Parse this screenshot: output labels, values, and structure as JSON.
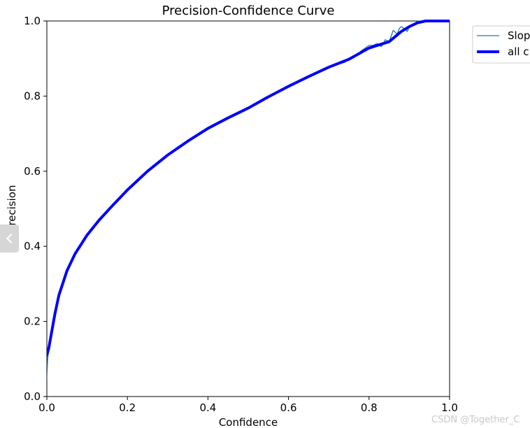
{
  "chart_data": {
    "type": "line",
    "title": "Precision-Confidence Curve",
    "xlabel": "Confidence",
    "ylabel": "Precision",
    "xlim": [
      0.0,
      1.0
    ],
    "ylim": [
      0.0,
      1.0
    ],
    "xticks": [
      "0.0",
      "0.2",
      "0.4",
      "0.6",
      "0.8",
      "1.0"
    ],
    "yticks": [
      "0.0",
      "0.2",
      "0.4",
      "0.6",
      "0.8",
      "1.0"
    ],
    "grid": false,
    "legend_position": "upper-right-outside",
    "series": [
      {
        "name": "Slop",
        "color": "#1f77b4",
        "x": [
          0.0,
          0.002,
          0.005,
          0.01,
          0.02,
          0.03,
          0.05,
          0.07,
          0.1,
          0.13,
          0.16,
          0.2,
          0.25,
          0.3,
          0.35,
          0.4,
          0.45,
          0.5,
          0.55,
          0.6,
          0.65,
          0.7,
          0.73,
          0.74,
          0.745,
          0.75,
          0.76,
          0.77,
          0.78,
          0.8,
          0.81,
          0.82,
          0.83,
          0.835,
          0.84,
          0.85,
          0.855,
          0.86,
          0.87,
          0.875,
          0.88,
          0.89,
          0.895,
          0.9,
          0.91,
          0.92,
          0.94,
          0.96,
          1.0
        ],
        "y": [
          0.05,
          0.1,
          0.13,
          0.16,
          0.22,
          0.27,
          0.34,
          0.38,
          0.43,
          0.47,
          0.505,
          0.55,
          0.6,
          0.643,
          0.68,
          0.714,
          0.742,
          0.768,
          0.798,
          0.826,
          0.852,
          0.877,
          0.887,
          0.89,
          0.895,
          0.9,
          0.905,
          0.91,
          0.92,
          0.935,
          0.935,
          0.94,
          0.932,
          0.938,
          0.95,
          0.945,
          0.96,
          0.975,
          0.965,
          0.98,
          0.985,
          0.978,
          0.972,
          0.985,
          0.99,
          1.0,
          1.0,
          1.0,
          1.0
        ]
      },
      {
        "name": "all c",
        "color": "#0000ff",
        "x": [
          0.0,
          0.005,
          0.01,
          0.02,
          0.03,
          0.05,
          0.07,
          0.1,
          0.13,
          0.16,
          0.2,
          0.25,
          0.3,
          0.35,
          0.4,
          0.45,
          0.5,
          0.55,
          0.6,
          0.65,
          0.7,
          0.75,
          0.8,
          0.85,
          0.88,
          0.9,
          0.92,
          0.94,
          1.0
        ],
        "y": [
          0.11,
          0.13,
          0.16,
          0.22,
          0.27,
          0.335,
          0.38,
          0.43,
          0.47,
          0.505,
          0.55,
          0.6,
          0.643,
          0.68,
          0.714,
          0.742,
          0.768,
          0.798,
          0.826,
          0.852,
          0.877,
          0.898,
          0.928,
          0.945,
          0.972,
          0.985,
          0.995,
          1.0,
          1.0
        ]
      }
    ]
  },
  "watermark": "CSDN @Together_C",
  "side_tab": {
    "icon": "chevron-left-icon"
  }
}
